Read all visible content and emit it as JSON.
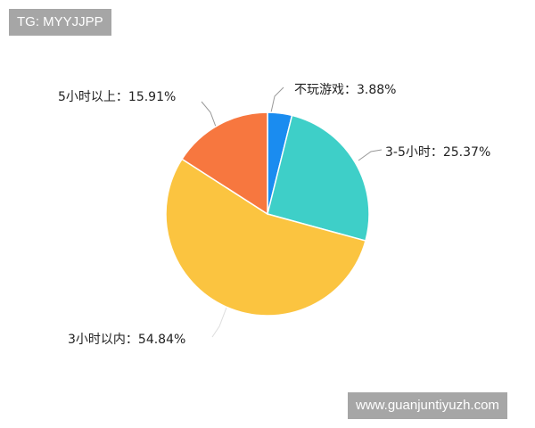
{
  "watermarks": {
    "top_left": "TG: MYYJJPP",
    "bottom_right": "www.guanjuntiyuzh.com"
  },
  "chart_data": {
    "type": "pie",
    "start": "top",
    "direction": "clockwise",
    "legend": "none",
    "slices": [
      {
        "label": "不玩游戏：3.88%",
        "name": "不玩游戏",
        "value": 3.88,
        "color": "#1a8cf0"
      },
      {
        "label": "3-5小时：25.37%",
        "name": "3-5小时",
        "value": 25.37,
        "color": "#3ecfc8"
      },
      {
        "label": "3小时以内：54.84%",
        "name": "3小时以内",
        "value": 54.84,
        "color": "#fbc440"
      },
      {
        "label": "5小时以上：15.91%",
        "name": "5小时以上",
        "value": 15.91,
        "color": "#f7773f"
      }
    ]
  }
}
